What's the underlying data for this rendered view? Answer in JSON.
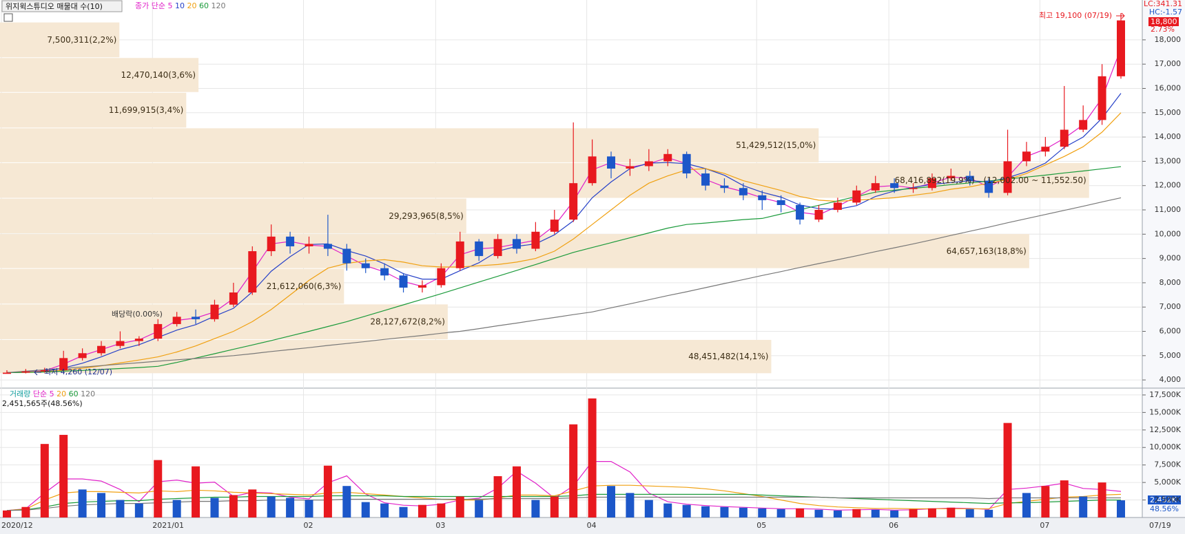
{
  "chart_data": [
    {
      "type": "candlestick",
      "title": "위지윅스튜디오 매물대 수(10)",
      "legend_label": "종가 단순",
      "up_color": "#e8191f",
      "down_color": "#1c57c9",
      "open": [
        4250,
        4300,
        4350,
        4400,
        4900,
        5100,
        5400,
        5600,
        5700,
        6300,
        6600,
        6500,
        7100,
        7600,
        9300,
        9900,
        9500,
        9600,
        9400,
        8800,
        8600,
        8300,
        7800,
        7900,
        8600,
        9700,
        9100,
        9800,
        9400,
        10100,
        10600,
        12100,
        13200,
        12700,
        12800,
        13000,
        13300,
        12500,
        12000,
        11900,
        11600,
        11400,
        11200,
        10600,
        11000,
        11300,
        11800,
        12100,
        11900,
        11900,
        12300,
        12400,
        12200,
        11700,
        13000,
        13400,
        13600,
        14300,
        14700,
        16500
      ],
      "high": [
        4400,
        4450,
        4500,
        5200,
        5300,
        5600,
        6000,
        5800,
        6500,
        6800,
        6900,
        7300,
        8000,
        9500,
        10400,
        10100,
        9900,
        10800,
        9600,
        9000,
        8800,
        8400,
        8100,
        8800,
        10100,
        9800,
        10000,
        10000,
        10500,
        11000,
        14600,
        13900,
        13400,
        13100,
        13500,
        13500,
        13400,
        12700,
        12300,
        12100,
        11800,
        11600,
        11300,
        11200,
        11500,
        12000,
        12400,
        12300,
        12100,
        12500,
        12700,
        12600,
        12300,
        14300,
        13800,
        14000,
        16100,
        15300,
        17000,
        19100
      ],
      "low": [
        4260,
        4270,
        4300,
        4380,
        4800,
        5000,
        5300,
        5400,
        5600,
        6200,
        6300,
        6400,
        7000,
        7500,
        9100,
        9200,
        9200,
        9100,
        8500,
        8400,
        8100,
        7600,
        7600,
        7800,
        8500,
        8900,
        9000,
        9200,
        9300,
        10000,
        10500,
        12000,
        12300,
        12400,
        12600,
        12800,
        12300,
        11800,
        11700,
        11400,
        11000,
        10900,
        10400,
        10500,
        10900,
        11200,
        11700,
        11700,
        11700,
        11800,
        12200,
        12000,
        11500,
        11600,
        12800,
        13200,
        13500,
        14200,
        14500,
        16400
      ],
      "close": [
        4300,
        4350,
        4400,
        4900,
        5100,
        5400,
        5600,
        5700,
        6300,
        6600,
        6500,
        7100,
        7600,
        9300,
        9900,
        9500,
        9600,
        9400,
        8800,
        8600,
        8300,
        7800,
        7900,
        8600,
        9700,
        9100,
        9800,
        9400,
        10100,
        10600,
        12100,
        13200,
        12700,
        12800,
        13000,
        13300,
        12500,
        12000,
        11900,
        11600,
        11400,
        11200,
        10600,
        11000,
        11300,
        11800,
        12100,
        11900,
        11900,
        12300,
        12400,
        12200,
        11700,
        13000,
        13400,
        13600,
        14300,
        14700,
        16500,
        18800
      ],
      "series": [
        {
          "name": "5",
          "color": "#e020c8",
          "values": [
            4300,
            4325,
            4375,
            4650,
            5000,
            5250,
            5500,
            5650,
            6000,
            6450,
            6550,
            6800,
            7350,
            8450,
            9600,
            9700,
            9550,
            9500,
            9100,
            8700,
            8450,
            8050,
            7850,
            8250,
            9150,
            9400,
            9450,
            9600,
            9750,
            10350,
            11350,
            12650,
            12950,
            12750,
            12900,
            13150,
            12900,
            12250,
            11950,
            11750,
            11500,
            11300,
            10900,
            10800,
            11150,
            11550,
            11950,
            12000,
            11900,
            12100,
            12350,
            12300,
            11950,
            12350,
            13200,
            13500,
            13950,
            14500,
            15600,
            17650
          ]
        },
        {
          "name": "10",
          "color": "#2540c8",
          "values": [
            4300,
            4325,
            4350,
            4490,
            4690,
            4950,
            5250,
            5450,
            5750,
            6050,
            6275,
            6625,
            6950,
            7625,
            8475,
            9075,
            9575,
            9600,
            9325,
            9100,
            8775,
            8375,
            8150,
            8150,
            8500,
            8825,
            9300,
            9500,
            9600,
            9975,
            10550,
            11500,
            12150,
            12700,
            12925,
            12950,
            12900,
            12700,
            12425,
            12000,
            11725,
            11525,
            11200,
            11050,
            11025,
            11175,
            11550,
            11775,
            11925,
            12050,
            12125,
            12200,
            12150,
            12325,
            12575,
            12925,
            13575,
            14000,
            14775,
            15800
          ]
        },
        {
          "name": "20",
          "color": "#f0a010",
          "values": [
            4300,
            4320,
            4350,
            4400,
            4480,
            4580,
            4700,
            4820,
            4950,
            5150,
            5400,
            5700,
            6000,
            6400,
            6900,
            7500,
            8100,
            8600,
            8800,
            8900,
            8950,
            8850,
            8700,
            8650,
            8650,
            8700,
            8750,
            8850,
            9000,
            9300,
            9800,
            10400,
            11000,
            11600,
            12100,
            12400,
            12650,
            12700,
            12500,
            12200,
            12000,
            11800,
            11550,
            11400,
            11350,
            11400,
            11450,
            11500,
            11600,
            11700,
            11850,
            11950,
            12100,
            12250,
            12500,
            12850,
            13200,
            13600,
            14200,
            15000
          ]
        },
        {
          "name": "60",
          "color": "#1a9a3a",
          "values": [
            4300,
            4310,
            4330,
            4360,
            4390,
            4430,
            4470,
            4510,
            4560,
            4720,
            4900,
            5080,
            5260,
            5440,
            5620,
            5810,
            6000,
            6200,
            6400,
            6630,
            6860,
            7090,
            7320,
            7550,
            7790,
            8030,
            8270,
            8510,
            8750,
            9000,
            9250,
            9450,
            9650,
            9850,
            10050,
            10250,
            10400,
            10460,
            10530,
            10600,
            10650,
            10830,
            11010,
            11190,
            11370,
            11550,
            11730,
            11810,
            11890,
            11960,
            12040,
            12110,
            12190,
            12270,
            12350,
            12430,
            12520,
            12600,
            12690,
            12780
          ]
        },
        {
          "name": "120",
          "color": "#777777",
          "values": [
            4300,
            4360,
            4420,
            4480,
            4530,
            4590,
            4650,
            4710,
            4770,
            4830,
            4880,
            4940,
            5000,
            5080,
            5170,
            5250,
            5330,
            5420,
            5500,
            5580,
            5670,
            5750,
            5830,
            5920,
            6000,
            6110,
            6230,
            6340,
            6460,
            6570,
            6690,
            6800,
            6970,
            7130,
            7300,
            7470,
            7630,
            7800,
            7970,
            8130,
            8300,
            8460,
            8630,
            8790,
            8950,
            9110,
            9280,
            9440,
            9600,
            9770,
            9950,
            10120,
            10290,
            10470,
            10640,
            10810,
            10980,
            11150,
            11330,
            11500
          ]
        }
      ],
      "ylim": [
        3720,
        19130
      ],
      "yticks": [
        {
          "value": 4000,
          "label": "4,000"
        },
        {
          "value": 5000,
          "label": "5,000"
        },
        {
          "value": 6000,
          "label": "6,000"
        },
        {
          "value": 7000,
          "label": "7,000"
        },
        {
          "value": 8000,
          "label": "8,000"
        },
        {
          "value": 9000,
          "label": "9,000"
        },
        {
          "value": 10000,
          "label": "10,000"
        },
        {
          "value": 11000,
          "label": "11,000"
        },
        {
          "value": 12000,
          "label": "12,000"
        },
        {
          "value": 13000,
          "label": "13,000"
        },
        {
          "value": 14000,
          "label": "14,000"
        },
        {
          "value": 15000,
          "label": "15,000"
        },
        {
          "value": 16000,
          "label": "16,000"
        },
        {
          "value": 17000,
          "label": "17,000"
        },
        {
          "value": 18000,
          "label": "18,000"
        }
      ],
      "grid": true,
      "volume_profile": {
        "color": "#f6e8d4",
        "xlim": [
          0,
          71760000
        ],
        "bins": [
          18716,
          17253,
          15822,
          14360,
          12929,
          11466,
          10004,
          8573,
          7110,
          5648,
          4248
        ],
        "values": [
          7500311,
          12470140,
          11699915,
          51429512,
          68416892,
          29293965,
          64657163,
          21612060,
          28127672,
          48451482
        ],
        "value_labels": [
          "7,500,311(2,2%)",
          "12,470,140(3,6%)",
          "11,699,915(3,4%)",
          "51,429,512(15,0%)",
          "68,416,892(19,9%)",
          "29,293,965(8,5%)",
          "64,657,163(18,8%)",
          "21,612,060(6,3%)",
          "28,127,672(8,2%)",
          "48,451,482(14,1%)"
        ],
        "range_label": "(12,002.00 ~ 11,552.50)"
      },
      "annotations": {
        "high": "최고 19,100 (07/19)",
        "low": "최저 4,260 (12/07)",
        "dividend": "배당락(0.00%)"
      },
      "right_labels": {
        "lc": "LC:341.31",
        "hc": "HC:-1.57",
        "price": "18,800",
        "change": "2.73%"
      }
    },
    {
      "type": "bar",
      "title": "거래량",
      "legend_label": "단순",
      "info": "2,451,565주(48.56%)",
      "categories": [
        "2020/12",
        null,
        null,
        null,
        null,
        null,
        null,
        null,
        "2021/01",
        null,
        null,
        null,
        null,
        null,
        null,
        null,
        "02",
        null,
        null,
        null,
        null,
        null,
        null,
        "03",
        null,
        null,
        null,
        null,
        null,
        null,
        null,
        "04",
        null,
        null,
        null,
        null,
        null,
        null,
        null,
        null,
        "05",
        null,
        null,
        null,
        null,
        null,
        null,
        "06",
        null,
        null,
        null,
        null,
        null,
        null,
        null,
        "07",
        null,
        null,
        null,
        "07/19"
      ],
      "values": [
        1000,
        1500,
        10500,
        11800,
        4000,
        3500,
        2500,
        2000,
        8200,
        2500,
        7300,
        2800,
        3200,
        4000,
        3000,
        2800,
        2500,
        7400,
        4500,
        2200,
        2000,
        1500,
        1800,
        2000,
        3000,
        2500,
        5900,
        7300,
        2500,
        3000,
        13300,
        17000,
        4500,
        3500,
        2500,
        2000,
        1800,
        1600,
        1500,
        1400,
        1300,
        1200,
        1300,
        1100,
        1000,
        1200,
        1100,
        1000,
        1200,
        1300,
        1400,
        1200,
        1100,
        13500,
        3500,
        4500,
        5300,
        3000,
        5000,
        2452
      ],
      "up_color": "#e8191f",
      "down_color": "#1c57c9",
      "series": [
        {
          "name": "5",
          "color": "#e020c8",
          "values": [
            1000,
            1250,
            3500,
            5500,
            5500,
            5200,
            4000,
            2250,
            5100,
            5350,
            4900,
            5050,
            3000,
            3600,
            3500,
            2900,
            2650,
            4950,
            5950,
            3350,
            2100,
            1750,
            1650,
            1900,
            2500,
            2750,
            4200,
            6600,
            4900,
            2750,
            4500,
            8000,
            8000,
            6500,
            3500,
            2250,
            1900,
            1700,
            1550,
            1450,
            1350,
            1250,
            1250,
            1200,
            1050,
            1100,
            1150,
            1050,
            1100,
            1250,
            1350,
            1300,
            1150,
            4000,
            4200,
            4500,
            4900,
            4150,
            4000,
            3726
          ]
        },
        {
          "name": "20",
          "color": "#f0a010",
          "values": [
            1000,
            1200,
            2500,
            3500,
            3700,
            3700,
            3600,
            3500,
            3800,
            3700,
            3900,
            3800,
            3600,
            3500,
            3400,
            3300,
            3200,
            3500,
            3600,
            3400,
            3200,
            3000,
            2800,
            2600,
            2500,
            2500,
            2800,
            3200,
            3200,
            3100,
            3800,
            4500,
            4600,
            4600,
            4500,
            4400,
            4300,
            4100,
            3800,
            3400,
            3000,
            2500,
            2000,
            1700,
            1500,
            1400,
            1300,
            1300,
            1250,
            1250,
            1250,
            1250,
            1250,
            2000,
            2300,
            2600,
            2900,
            3000,
            3200,
            3300
          ]
        },
        {
          "name": "60",
          "color": "#1a9a3a",
          "values": [
            1000,
            1100,
            1500,
            2000,
            2200,
            2300,
            2400,
            2400,
            2600,
            2700,
            2800,
            2900,
            2900,
            3000,
            3000,
            3000,
            3000,
            3100,
            3100,
            3100,
            3100,
            3000,
            3000,
            3000,
            3000,
            3000,
            3000,
            3000,
            3000,
            3000,
            3100,
            3300,
            3300,
            3300,
            3300,
            3300,
            3300,
            3300,
            3300,
            3300,
            3200,
            3100,
            3000,
            2900,
            2800,
            2700,
            2600,
            2500,
            2400,
            2300,
            2200,
            2100,
            2000,
            2100,
            2100,
            2200,
            2300,
            2400,
            2500,
            2500
          ]
        },
        {
          "name": "120",
          "color": "#777777",
          "values": [
            1000,
            1050,
            1300,
            1600,
            1800,
            1900,
            2000,
            2000,
            2100,
            2200,
            2300,
            2300,
            2400,
            2400,
            2500,
            2500,
            2500,
            2500,
            2600,
            2600,
            2600,
            2600,
            2600,
            2600,
            2600,
            2600,
            2700,
            2700,
            2700,
            2700,
            2800,
            2900,
            2900,
            2900,
            2900,
            2900,
            2900,
            2900,
            2900,
            2900,
            2900,
            2900,
            2900,
            2900,
            2800,
            2800,
            2800,
            2800,
            2800,
            2800,
            2800,
            2800,
            2700,
            2800,
            2800,
            2800,
            2800,
            2800,
            2800,
            2800
          ]
        }
      ],
      "ylim": [
        0,
        18280
      ],
      "yticks": [
        {
          "value": 2500,
          "label": "2,500K"
        },
        {
          "value": 5000,
          "label": "5,000K"
        },
        {
          "value": 7500,
          "label": "7,500K"
        },
        {
          "value": 10000,
          "label": "10,000K"
        },
        {
          "value": 12500,
          "label": "12,500K"
        },
        {
          "value": 15000,
          "label": "15,000K"
        },
        {
          "value": 17500,
          "label": "17,500K"
        }
      ],
      "grid": true,
      "right_labels": {
        "volume": "2,452K",
        "ratio": "48.56%"
      }
    }
  ]
}
